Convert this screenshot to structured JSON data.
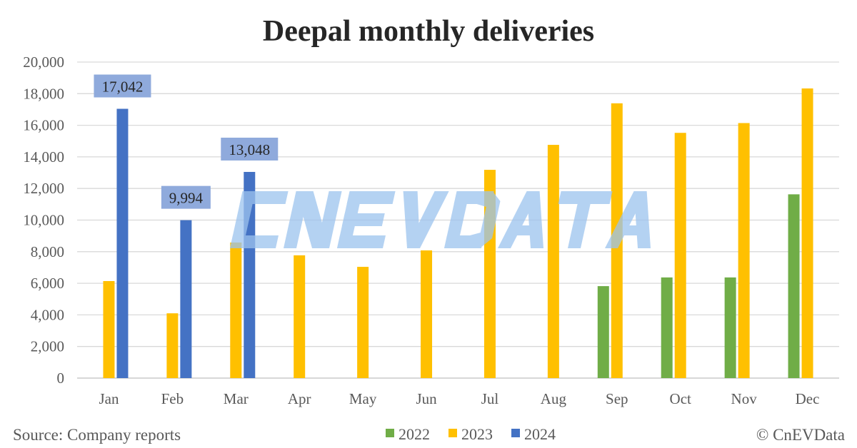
{
  "chart_data": {
    "type": "bar",
    "title": "Deepal monthly deliveries",
    "categories": [
      "Jan",
      "Feb",
      "Mar",
      "Apr",
      "May",
      "Jun",
      "Jul",
      "Aug",
      "Sep",
      "Oct",
      "Nov",
      "Dec"
    ],
    "ylim": [
      0,
      20000
    ],
    "yticks": [
      0,
      2000,
      4000,
      6000,
      8000,
      10000,
      12000,
      14000,
      16000,
      18000,
      20000
    ],
    "ytick_labels": [
      "0",
      "2,000",
      "4,000",
      "6,000",
      "8,000",
      "10,000",
      "12,000",
      "14,000",
      "16,000",
      "18,000",
      "20,000"
    ],
    "grid": true,
    "legend_position": "bottom",
    "series": [
      {
        "name": "2022",
        "color": "#70ad47",
        "values": [
          null,
          null,
          null,
          null,
          null,
          null,
          null,
          null,
          5820,
          6370,
          6370,
          11630
        ]
      },
      {
        "name": "2023",
        "color": "#ffc000",
        "values": [
          6140,
          4100,
          8580,
          7770,
          7040,
          8080,
          13180,
          14760,
          17390,
          15520,
          16140,
          18330
        ]
      },
      {
        "name": "2024",
        "color": "#4472c4",
        "values": [
          17042,
          9994,
          13048,
          null,
          null,
          null,
          null,
          null,
          null,
          null,
          null,
          null
        ],
        "data_labels": [
          "17,042",
          "9,994",
          "13,048"
        ]
      }
    ]
  },
  "footer": {
    "source": "Source: Company reports",
    "copyright": "© CnEVData"
  },
  "watermark": "CNEVDATA"
}
